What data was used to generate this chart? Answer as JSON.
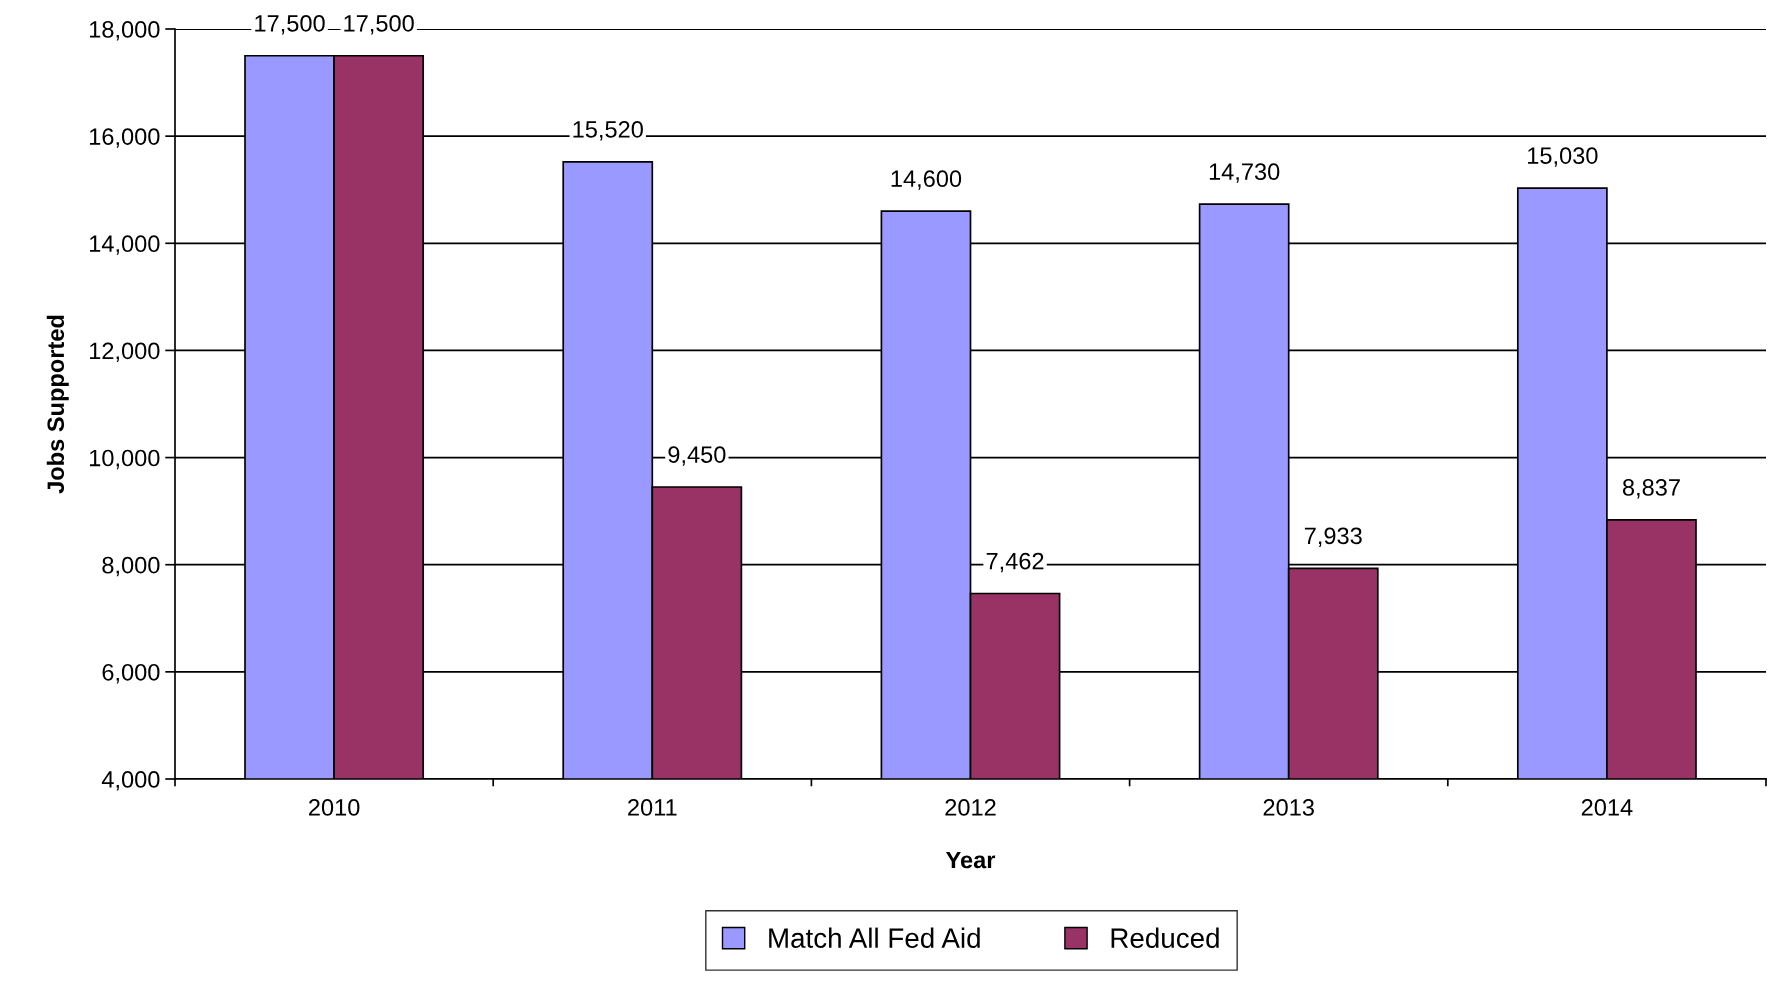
{
  "chart_data": {
    "type": "bar",
    "xlabel": "Year",
    "ylabel": "Jobs Supported",
    "categories": [
      "2010",
      "2011",
      "2012",
      "2013",
      "2014"
    ],
    "series": [
      {
        "name": "Match All Fed Aid",
        "color": "#9999ff",
        "values": [
          17500,
          15520,
          14600,
          14730,
          15030
        ],
        "value_labels": [
          "17,500",
          "15,520",
          "14,600",
          "14,730",
          "15,030"
        ]
      },
      {
        "name": "Reduced",
        "color": "#993366",
        "values": [
          17500,
          9450,
          7462,
          7933,
          8837
        ],
        "value_labels": [
          "17,500",
          "9,450",
          "7,462",
          "7,933",
          "8,837"
        ]
      }
    ],
    "ylim": [
      4000,
      18000
    ],
    "yticks": [
      {
        "value": 4000,
        "label": "4,000"
      },
      {
        "value": 6000,
        "label": "6,000"
      },
      {
        "value": 8000,
        "label": "8,000"
      },
      {
        "value": 10000,
        "label": "10,000"
      },
      {
        "value": 12000,
        "label": "12,000"
      },
      {
        "value": 14000,
        "label": "14,000"
      },
      {
        "value": 16000,
        "label": "16,000"
      },
      {
        "value": 18000,
        "label": "18,000"
      }
    ],
    "grid": "y",
    "legend": "bottom"
  }
}
